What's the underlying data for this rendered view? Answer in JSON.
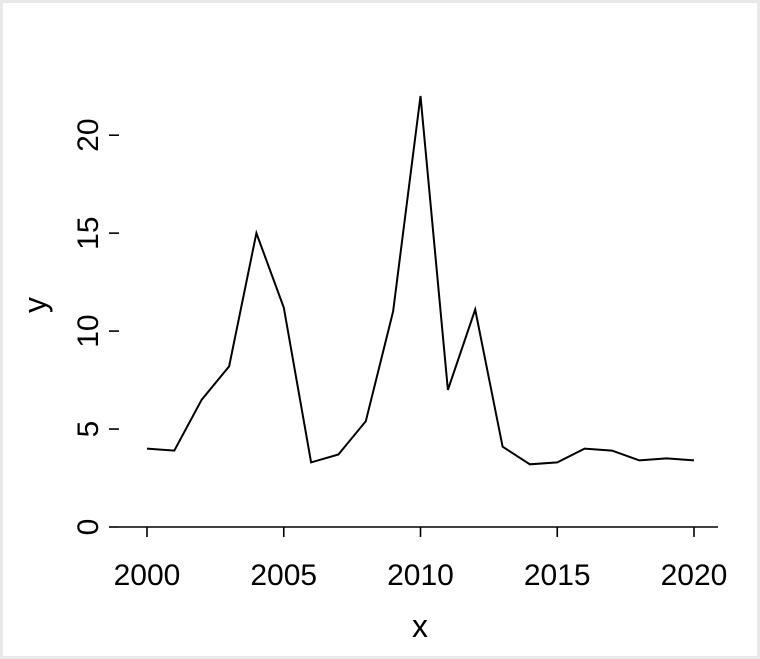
{
  "chart_data": {
    "type": "line",
    "title": "",
    "xlabel": "x",
    "ylabel": "y",
    "xlim": [
      2000,
      2020
    ],
    "ylim": [
      0,
      22
    ],
    "xticks": [
      2000,
      2005,
      2010,
      2015,
      2020
    ],
    "yticks": [
      0,
      5,
      10,
      15,
      20
    ],
    "xtick_labels": [
      "2000",
      "2005",
      "2010",
      "2015",
      "2020"
    ],
    "ytick_labels": [
      "0",
      "5",
      "10",
      "15",
      "20"
    ],
    "grid": false,
    "legend": "none",
    "line_color": "#000000",
    "series": [
      {
        "x": [
          2000,
          2001,
          2002,
          2003,
          2004,
          2005,
          2006,
          2007,
          2008,
          2009,
          2010,
          2011,
          2012,
          2013,
          2014,
          2015,
          2016,
          2017,
          2018,
          2019,
          2020
        ],
        "values": [
          4.0,
          3.9,
          6.5,
          8.2,
          15.0,
          11.2,
          3.3,
          3.7,
          5.4,
          11.0,
          22.0,
          7.0,
          11.1,
          4.1,
          3.2,
          3.3,
          4.0,
          3.9,
          3.4,
          3.5,
          3.4
        ]
      }
    ]
  }
}
